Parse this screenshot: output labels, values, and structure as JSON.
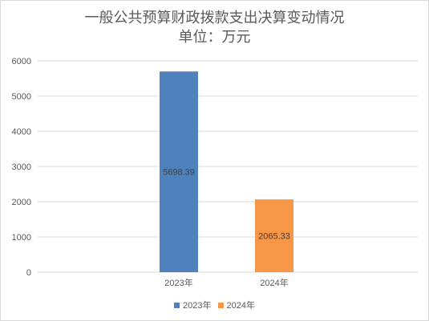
{
  "chart_data": {
    "type": "bar",
    "title": "一般公共预算财政拨款支出决算变动情况",
    "subtitle": "单位：万元",
    "categories": [
      "2023年",
      "2024年"
    ],
    "values": [
      5698.39,
      2065.33
    ],
    "data_labels": [
      "5698.39",
      "2065.33"
    ],
    "colors": [
      "#4f81bd",
      "#f79646"
    ],
    "yticks": [
      "0",
      "1000",
      "2000",
      "3000",
      "4000",
      "5000",
      "6000"
    ],
    "ylim": [
      0,
      6000
    ],
    "grid": true,
    "legend": {
      "position": "bottom",
      "entries": [
        "2023年",
        "2024年"
      ]
    }
  }
}
